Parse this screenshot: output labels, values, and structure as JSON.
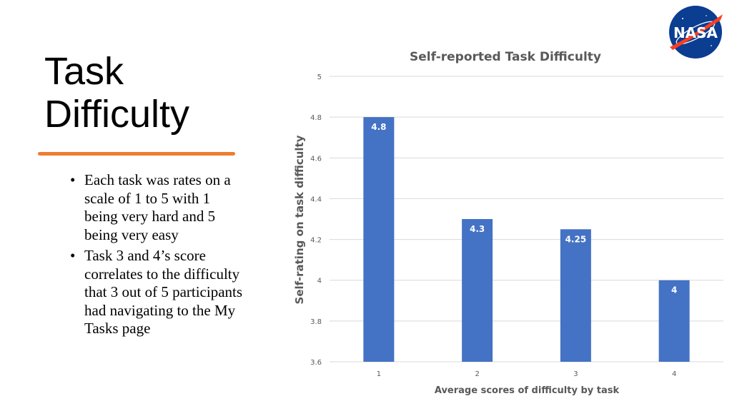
{
  "slide": {
    "title": "Task Difficulty",
    "bullets": [
      "Each task was rates on a scale of 1 to 5 with 1 being very hard and 5 being very easy",
      "Task 3 and 4’s score correlates to the difficulty that 3 out of 5 participants had navigating to the My Tasks page"
    ],
    "bullet_glyph": "•",
    "accent_color": "#ED7D31",
    "logo": {
      "icon": "nasa-meatball-logo",
      "text": "NASA"
    }
  },
  "chart_data": {
    "type": "bar",
    "title": "Self-reported Task Difficulty",
    "xlabel": "Average scores of difficulty by task",
    "ylabel": "Self-rating on task difficulty",
    "categories": [
      "1",
      "2",
      "3",
      "4"
    ],
    "values": [
      4.8,
      4.3,
      4.25,
      4
    ],
    "data_labels": [
      "4.8",
      "4.3",
      "4.25",
      "4"
    ],
    "ylim": [
      3.6,
      5
    ],
    "yticks": [
      "3.6",
      "3.8",
      "4",
      "4.2",
      "4.4",
      "4.6",
      "4.8",
      "5"
    ],
    "grid": true,
    "legend": "none",
    "bar_color": "#4472C4"
  }
}
